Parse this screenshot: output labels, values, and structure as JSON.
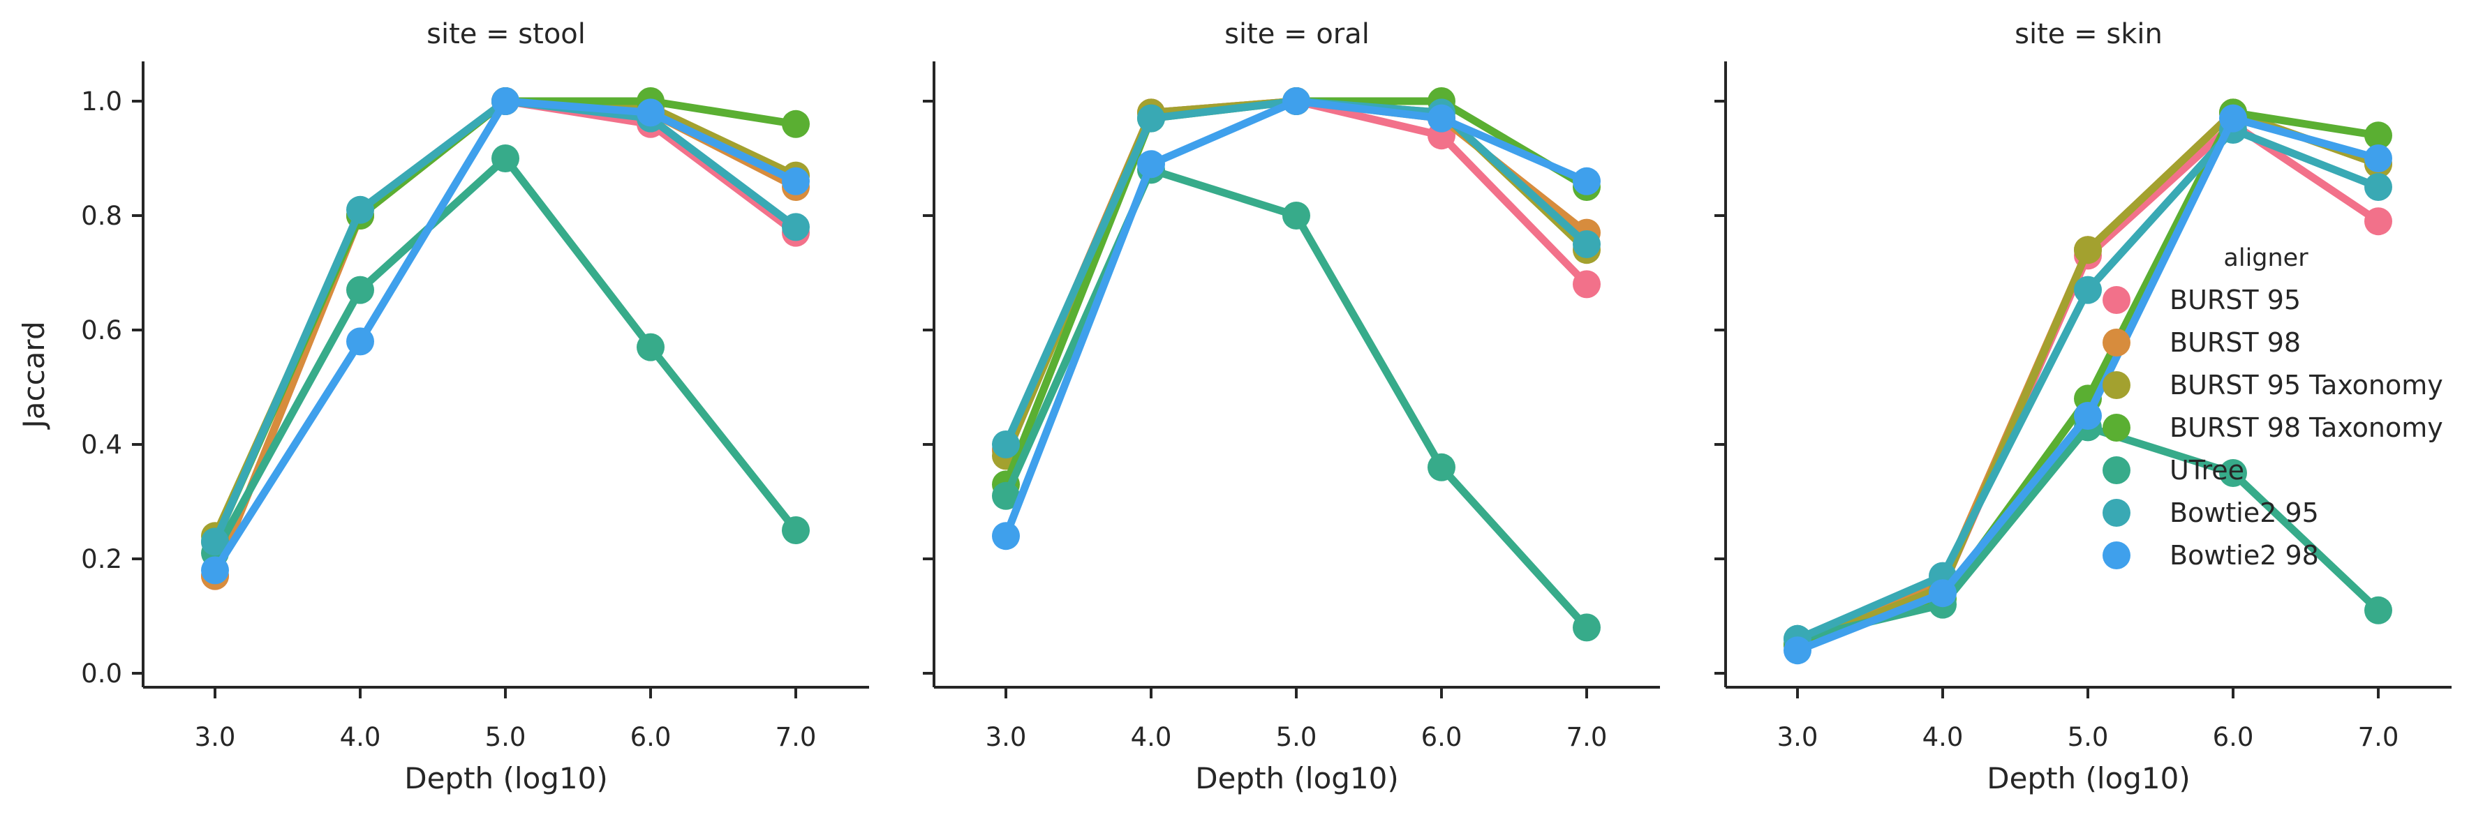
{
  "chart_data": {
    "type": "line",
    "ylabel": "Jaccard",
    "xlabel": "Depth (log10)",
    "x": [
      3.0,
      4.0,
      5.0,
      6.0,
      7.0
    ],
    "x_tick_labels": [
      "3.0",
      "4.0",
      "5.0",
      "6.0",
      "7.0"
    ],
    "ylim": [
      -0.02,
      1.07
    ],
    "y_ticks": [
      0.0,
      0.2,
      0.4,
      0.6,
      0.8,
      1.0
    ],
    "y_tick_labels": [
      "0.0",
      "0.2",
      "0.4",
      "0.6",
      "0.8",
      "1.0"
    ],
    "grid": false,
    "legend": {
      "title": "aligner",
      "placement": "inside the site = skin panel, right",
      "entries": [
        "BURST 95",
        "BURST 98",
        "BURST 95 Taxonomy",
        "BURST 98 Taxonomy",
        "UTree",
        "Bowtie2 95",
        "Bowtie2 98"
      ]
    },
    "series_colors": {
      "BURST 95": "#f2718a",
      "BURST 98": "#d78c3d",
      "BURST 95 Taxonomy": "#a3a12f",
      "BURST 98 Taxonomy": "#5aaf32",
      "UTree": "#37ab8a",
      "Bowtie2 95": "#39a9b4",
      "Bowtie2 98": "#3fa0ec"
    },
    "panels": [
      {
        "title": "site = stool",
        "series": [
          {
            "name": "BURST 95",
            "values": [
              0.17,
              0.8,
              1.0,
              0.96,
              0.77
            ]
          },
          {
            "name": "BURST 98",
            "values": [
              0.17,
              0.8,
              1.0,
              0.98,
              0.85
            ]
          },
          {
            "name": "BURST 95 Taxonomy",
            "values": [
              0.24,
              0.8,
              1.0,
              0.99,
              0.87
            ]
          },
          {
            "name": "BURST 98 Taxonomy",
            "values": [
              0.23,
              0.8,
              1.0,
              1.0,
              0.96
            ]
          },
          {
            "name": "UTree",
            "values": [
              0.21,
              0.67,
              0.9,
              0.57,
              0.25
            ]
          },
          {
            "name": "Bowtie2 95",
            "values": [
              0.23,
              0.81,
              1.0,
              0.97,
              0.78
            ]
          },
          {
            "name": "Bowtie2 98",
            "values": [
              0.18,
              0.58,
              1.0,
              0.98,
              0.86
            ]
          }
        ]
      },
      {
        "title": "site = oral",
        "series": [
          {
            "name": "BURST 95",
            "values": [
              0.39,
              0.98,
              1.0,
              0.94,
              0.68
            ]
          },
          {
            "name": "BURST 98",
            "values": [
              0.39,
              0.98,
              1.0,
              0.97,
              0.77
            ]
          },
          {
            "name": "BURST 95 Taxonomy",
            "values": [
              0.38,
              0.98,
              1.0,
              0.98,
              0.74
            ]
          },
          {
            "name": "BURST 98 Taxonomy",
            "values": [
              0.33,
              0.97,
              1.0,
              1.0,
              0.85
            ]
          },
          {
            "name": "UTree",
            "values": [
              0.31,
              0.88,
              0.8,
              0.36,
              0.08
            ]
          },
          {
            "name": "Bowtie2 95",
            "values": [
              0.4,
              0.97,
              1.0,
              0.98,
              0.75
            ]
          },
          {
            "name": "Bowtie2 98",
            "values": [
              0.24,
              0.89,
              1.0,
              0.97,
              0.86
            ]
          }
        ]
      },
      {
        "title": "site = skin",
        "series": [
          {
            "name": "BURST 95",
            "values": [
              0.05,
              0.15,
              0.73,
              0.96,
              0.79
            ]
          },
          {
            "name": "BURST 98",
            "values": [
              0.05,
              0.16,
              0.74,
              0.98,
              0.89
            ]
          },
          {
            "name": "BURST 95 Taxonomy",
            "values": [
              0.05,
              0.15,
              0.74,
              0.98,
              0.89
            ]
          },
          {
            "name": "BURST 98 Taxonomy",
            "values": [
              0.05,
              0.13,
              0.48,
              0.98,
              0.94
            ]
          },
          {
            "name": "UTree",
            "values": [
              0.06,
              0.12,
              0.43,
              0.35,
              0.11
            ]
          },
          {
            "name": "Bowtie2 95",
            "values": [
              0.06,
              0.17,
              0.67,
              0.95,
              0.85
            ]
          },
          {
            "name": "Bowtie2 98",
            "values": [
              0.04,
              0.14,
              0.45,
              0.97,
              0.9
            ]
          }
        ]
      }
    ]
  }
}
